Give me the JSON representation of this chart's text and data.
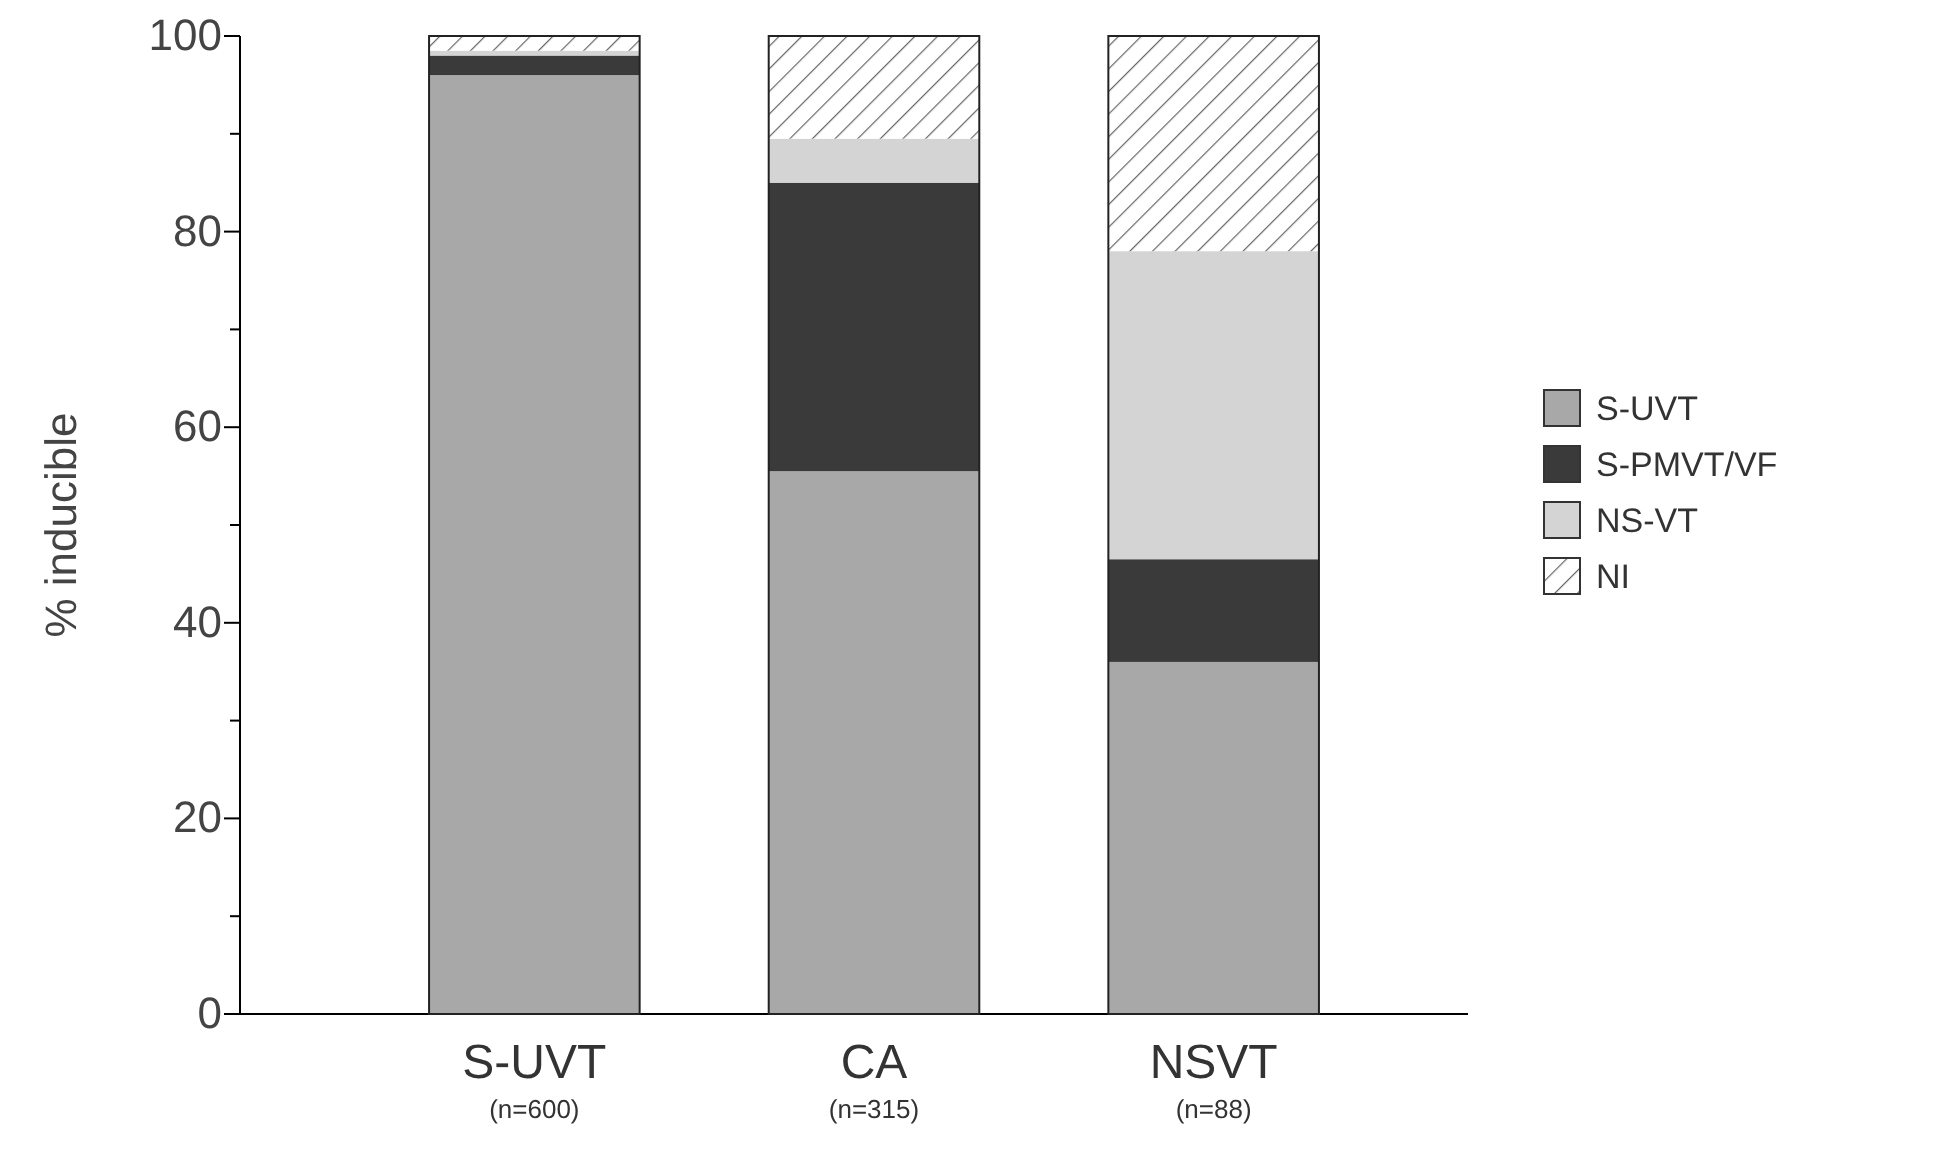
{
  "chart_data": {
    "type": "bar",
    "stacked": true,
    "ylabel": "% inducible",
    "categories": [
      "S-UVT$_{(n=600)}$",
      "CA$_{(n=315)}$",
      "NSVT$_{(n=88)}$"
    ],
    "series": [
      {
        "name": "S-UVT",
        "color": "#a8a8a8",
        "values": [
          96,
          55.5,
          36
        ]
      },
      {
        "name": "S-PMVT/VF",
        "color": "#3a3a3a",
        "values": [
          2,
          29.5,
          10.5
        ]
      },
      {
        "name": "NS-VT",
        "color": "#d4d4d4",
        "values": [
          0.5,
          4.5,
          31.5
        ]
      },
      {
        "name": "NI",
        "color": "#ffffff",
        "values": [
          1.5,
          10.5,
          22
        ]
      }
    ],
    "ylim": [
      0,
      100
    ],
    "yticks": [
      0,
      {
        "value": 10,
        "label": null
      },
      20,
      {
        "value": 30,
        "label": null
      },
      40,
      {
        "value": 50,
        "label": null
      },
      60,
      {
        "value": 70,
        "label": null
      },
      80,
      {
        "value": 90,
        "label": null
      },
      100
    ],
    "grid": false,
    "legend": "right"
  }
}
